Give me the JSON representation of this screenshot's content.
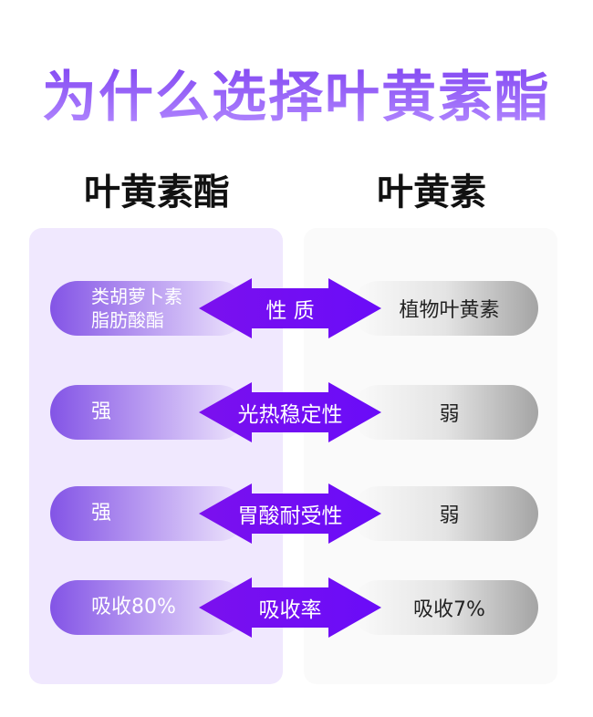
{
  "title": "为什么选择叶黄素酯",
  "columns": {
    "left": "叶黄素酯",
    "right": "叶黄素"
  },
  "colors": {
    "accent": "#7a1cf5",
    "left_panel": "#f0e8fe",
    "right_panel": "#fafafa"
  },
  "rows": [
    {
      "left": "类胡萝卜素\n脂肪酸酯",
      "property": "性 质",
      "right": "植物叶黄素"
    },
    {
      "left": "强",
      "property": "光热稳定性",
      "right": "弱"
    },
    {
      "left": "强",
      "property": "胃酸耐受性",
      "right": "弱"
    },
    {
      "left": "吸收80%",
      "property": "吸收率",
      "right": "吸收7%"
    }
  ]
}
